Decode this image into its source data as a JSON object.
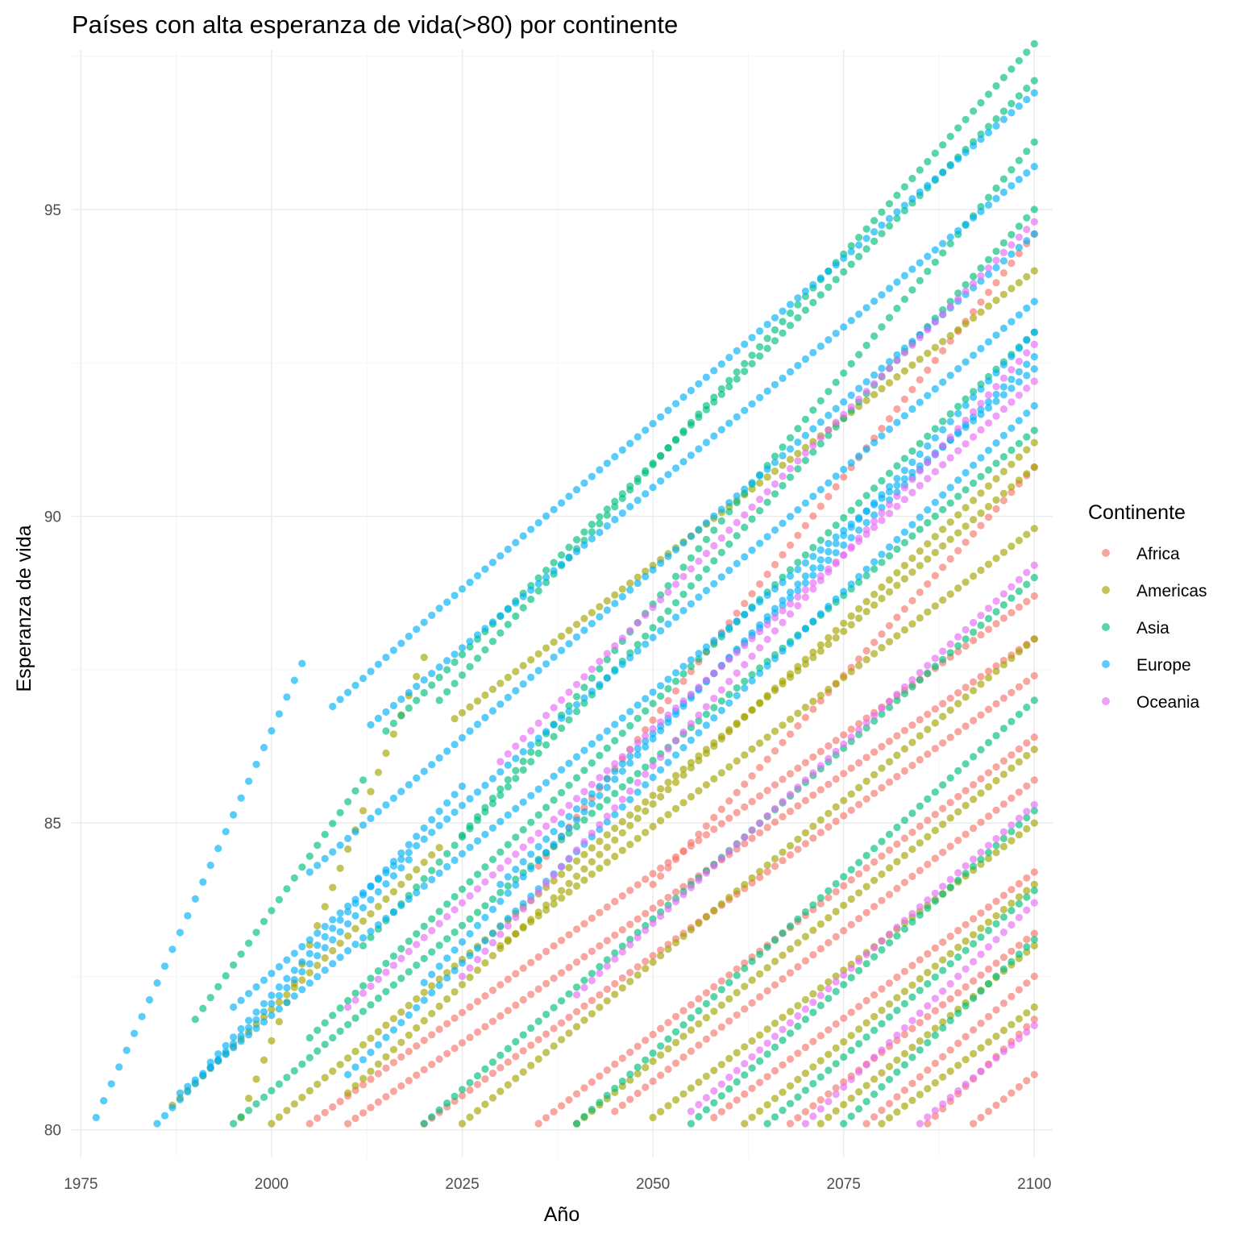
{
  "chart_data": {
    "type": "scatter",
    "title": "Países con alta esperanza de vida(>80) por continente",
    "xlabel": "Año",
    "ylabel": "Esperanza de vida",
    "xlim": [
      1973.8,
      2102.4
    ],
    "ylim": [
      79.55,
      97.6
    ],
    "x_ticks": [
      1975,
      2000,
      2025,
      2050,
      2075,
      2100
    ],
    "y_ticks": [
      80,
      85,
      90,
      95
    ],
    "grid": true,
    "legend": {
      "title": "Continente",
      "position": "right"
    },
    "point_opacity": 0.65,
    "series": [
      {
        "name": "Africa",
        "color": "#F8766D",
        "lines": [
          {
            "x": [
              2005,
              2100
            ],
            "y": [
              80.1,
              88.7
            ]
          },
          {
            "x": [
              2010,
              2100
            ],
            "y": [
              80.1,
              88.0
            ]
          },
          {
            "x": [
              2020,
              2100
            ],
            "y": [
              80.1,
              87.4
            ]
          },
          {
            "x": [
              2035,
              2100
            ],
            "y": [
              80.1,
              86.4
            ]
          },
          {
            "x": [
              2045,
              2100
            ],
            "y": [
              80.3,
              85.7
            ]
          },
          {
            "x": [
              2058,
              2100
            ],
            "y": [
              80.2,
              84.2
            ]
          },
          {
            "x": [
              2068,
              2100
            ],
            "y": [
              80.1,
              83.2
            ]
          },
          {
            "x": [
              2078,
              2100
            ],
            "y": [
              80.1,
              82.5
            ]
          },
          {
            "x": [
              2086,
              2100
            ],
            "y": [
              80.1,
              81.8
            ]
          },
          {
            "x": [
              2092,
              2100
            ],
            "y": [
              80.1,
              80.9
            ]
          },
          {
            "x": [
              2035,
              2100
            ],
            "y": [
              84.3,
              94.6
            ]
          },
          {
            "x": [
              2050,
              2100
            ],
            "y": [
              84.0,
              90.8
            ]
          }
        ]
      },
      {
        "name": "Americas",
        "color": "#A3A500",
        "lines": [
          {
            "x": [
              1987,
              2022
            ],
            "y": [
              80.4,
              84.6
            ]
          },
          {
            "x": [
              1996,
              2020
            ],
            "y": [
              80.2,
              87.7
            ]
          },
          {
            "x": [
              2000,
              2100
            ],
            "y": [
              80.1,
              90.8
            ]
          },
          {
            "x": [
              2010,
              2100
            ],
            "y": [
              80.6,
              91.2
            ]
          },
          {
            "x": [
              2025,
              2100
            ],
            "y": [
              80.1,
              88.0
            ]
          },
          {
            "x": [
              2040,
              2100
            ],
            "y": [
              80.1,
              86.2
            ]
          },
          {
            "x": [
              2050,
              2100
            ],
            "y": [
              80.2,
              85.0
            ]
          },
          {
            "x": [
              2062,
              2100
            ],
            "y": [
              80.1,
              84.0
            ]
          },
          {
            "x": [
              2072,
              2100
            ],
            "y": [
              80.1,
              83.0
            ]
          },
          {
            "x": [
              2024,
              2100
            ],
            "y": [
              86.7,
              94.0
            ]
          },
          {
            "x": [
              2030,
              2100
            ],
            "y": [
              83.0,
              89.8
            ]
          },
          {
            "x": [
              2080,
              2100
            ],
            "y": [
              80.1,
              82.0
            ]
          }
        ]
      },
      {
        "name": "Asia",
        "color": "#00BF7D",
        "lines": [
          {
            "x": [
              2022,
              2100
            ],
            "y": [
              87.0,
              97.7
            ]
          },
          {
            "x": [
              2015,
              2100
            ],
            "y": [
              86.5,
              97.1
            ]
          },
          {
            "x": [
              2025,
              2100
            ],
            "y": [
              84.8,
              96.1
            ]
          },
          {
            "x": [
              2012,
              2100
            ],
            "y": [
              83.0,
              95.0
            ]
          },
          {
            "x": [
              2005,
              2100
            ],
            "y": [
              81.5,
              93.0
            ]
          },
          {
            "x": [
              1995,
              2100
            ],
            "y": [
              80.1,
              91.4
            ]
          },
          {
            "x": [
              2020,
              2100
            ],
            "y": [
              80.1,
              89.0
            ]
          },
          {
            "x": [
              2040,
              2100
            ],
            "y": [
              80.1,
              87.0
            ]
          },
          {
            "x": [
              2055,
              2100
            ],
            "y": [
              80.1,
              85.2
            ]
          },
          {
            "x": [
              2065,
              2100
            ],
            "y": [
              80.1,
              83.9
            ]
          },
          {
            "x": [
              2075,
              2100
            ],
            "y": [
              80.1,
              83.1
            ]
          },
          {
            "x": [
              1990,
              2012
            ],
            "y": [
              81.8,
              85.7
            ]
          }
        ]
      },
      {
        "name": "Europe",
        "color": "#00B0F6",
        "lines": [
          {
            "x": [
              1977,
              2004
            ],
            "y": [
              80.2,
              87.6
            ]
          },
          {
            "x": [
              2023,
              2100
            ],
            "y": [
              88.6,
              96.9
            ]
          },
          {
            "x": [
              2013,
              2100
            ],
            "y": [
              86.6,
              95.7
            ]
          },
          {
            "x": [
              2005,
              2100
            ],
            "y": [
              84.2,
              94.6
            ]
          },
          {
            "x": [
              1995,
              2100
            ],
            "y": [
              82.0,
              93.5
            ]
          },
          {
            "x": [
              1988,
              2100
            ],
            "y": [
              80.6,
              92.4
            ]
          },
          {
            "x": [
              2010,
              2100
            ],
            "y": [
              80.9,
              91.8
            ]
          },
          {
            "x": [
              2020,
              2100
            ],
            "y": [
              82.4,
              93.0
            ]
          },
          {
            "x": [
              1992,
              2025
            ],
            "y": [
              81.1,
              85.6
            ]
          },
          {
            "x": [
              1985,
              2018
            ],
            "y": [
              80.1,
              84.4
            ]
          },
          {
            "x": [
              2008,
              2022
            ],
            "y": [
              86.9,
              88.5
            ]
          },
          {
            "x": [
              2030,
              2100
            ],
            "y": [
              84.0,
              92.6
            ]
          }
        ]
      },
      {
        "name": "Oceania",
        "color": "#E76BF3",
        "lines": [
          {
            "x": [
              2010,
              2100
            ],
            "y": [
              82.0,
              92.2
            ]
          },
          {
            "x": [
              2025,
              2100
            ],
            "y": [
              82.5,
              92.8
            ]
          },
          {
            "x": [
              2040,
              2100
            ],
            "y": [
              82.2,
              89.2
            ]
          },
          {
            "x": [
              2055,
              2100
            ],
            "y": [
              80.3,
              85.3
            ]
          },
          {
            "x": [
              2070,
              2100
            ],
            "y": [
              80.1,
              83.7
            ]
          },
          {
            "x": [
              2085,
              2100
            ],
            "y": [
              80.1,
              81.7
            ]
          },
          {
            "x": [
              2030,
              2100
            ],
            "y": [
              86.0,
              94.8
            ]
          }
        ]
      }
    ]
  }
}
